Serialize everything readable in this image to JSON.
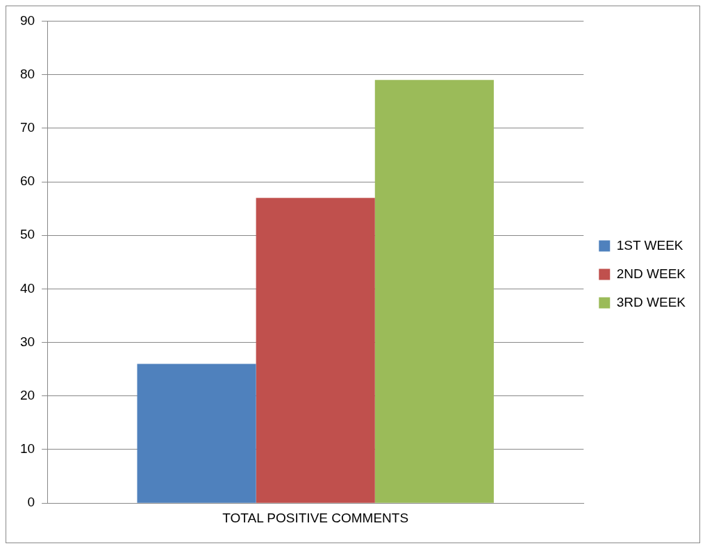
{
  "chart_data": {
    "type": "bar",
    "categories": [
      "TOTAL POSITIVE COMMENTS"
    ],
    "series": [
      {
        "name": "1ST WEEK",
        "color": "#4f81bd",
        "values": [
          26
        ]
      },
      {
        "name": "2ND WEEK",
        "color": "#c0504d",
        "values": [
          57
        ]
      },
      {
        "name": "3RD WEEK",
        "color": "#9bbb59",
        "values": [
          79
        ]
      }
    ],
    "ylim": [
      0,
      90
    ],
    "yticks": [
      0,
      10,
      20,
      30,
      40,
      50,
      60,
      70,
      80,
      90
    ],
    "grid": "y",
    "legend": "right"
  }
}
